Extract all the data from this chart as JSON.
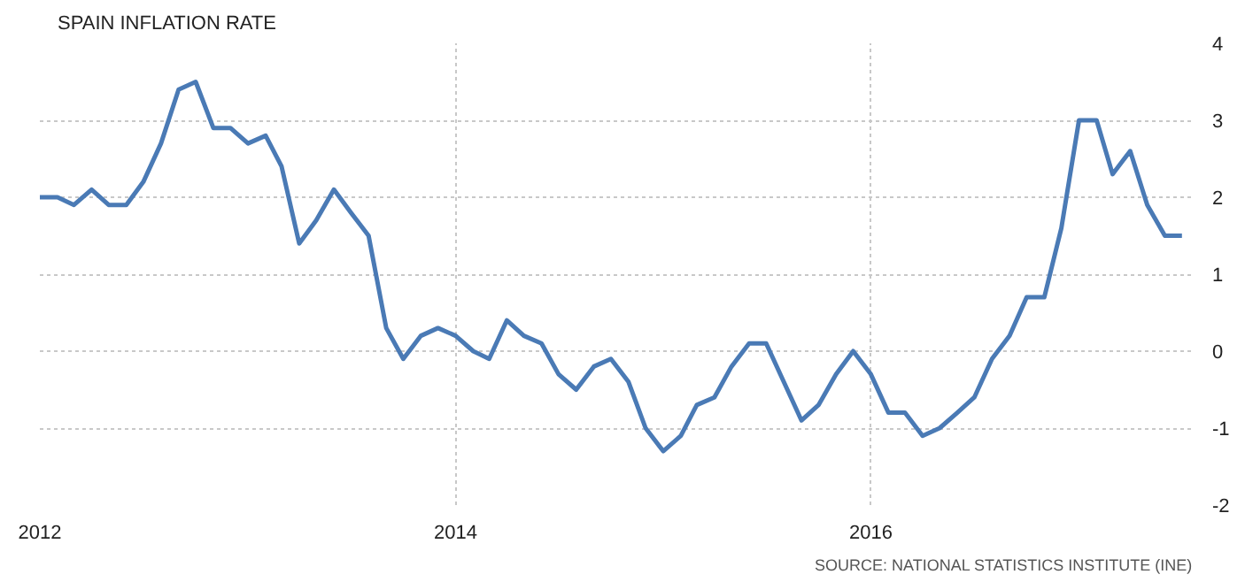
{
  "chart_data": {
    "type": "line",
    "title": "SPAIN INFLATION RATE",
    "x": [
      "2012-01",
      "2012-02",
      "2012-03",
      "2012-04",
      "2012-05",
      "2012-06",
      "2012-07",
      "2012-08",
      "2012-09",
      "2012-10",
      "2012-11",
      "2012-12",
      "2013-01",
      "2013-02",
      "2013-03",
      "2013-04",
      "2013-05",
      "2013-06",
      "2013-07",
      "2013-08",
      "2013-09",
      "2013-10",
      "2013-11",
      "2013-12",
      "2014-01",
      "2014-02",
      "2014-03",
      "2014-04",
      "2014-05",
      "2014-06",
      "2014-07",
      "2014-08",
      "2014-09",
      "2014-10",
      "2014-11",
      "2014-12",
      "2015-01",
      "2015-02",
      "2015-03",
      "2015-04",
      "2015-05",
      "2015-06",
      "2015-07",
      "2015-08",
      "2015-09",
      "2015-10",
      "2015-11",
      "2015-12",
      "2016-01",
      "2016-02",
      "2016-03",
      "2016-04",
      "2016-05",
      "2016-06",
      "2016-07",
      "2016-08",
      "2016-09",
      "2016-10",
      "2016-11",
      "2016-12",
      "2017-01",
      "2017-02",
      "2017-03",
      "2017-04",
      "2017-05",
      "2017-06",
      "2017-07"
    ],
    "series": [
      {
        "color": "#4a7ab5",
        "values": [
          2.0,
          2.0,
          1.9,
          2.1,
          1.9,
          1.9,
          2.2,
          2.7,
          3.4,
          3.5,
          2.9,
          2.9,
          2.7,
          2.8,
          2.4,
          1.4,
          1.7,
          2.1,
          1.8,
          1.5,
          0.3,
          -0.1,
          0.2,
          0.3,
          0.2,
          0.0,
          -0.1,
          0.4,
          0.2,
          0.1,
          -0.3,
          -0.5,
          -0.2,
          -0.1,
          -0.4,
          -1.0,
          -1.3,
          -1.1,
          -0.7,
          -0.6,
          -0.2,
          0.1,
          0.1,
          -0.4,
          -0.9,
          -0.7,
          -0.3,
          0.0,
          -0.3,
          -0.8,
          -0.8,
          -1.1,
          -1.0,
          -0.8,
          -0.6,
          -0.1,
          0.2,
          0.7,
          0.7,
          1.6,
          3.0,
          3.0,
          2.3,
          2.6,
          1.9,
          1.5,
          1.5
        ]
      }
    ],
    "xlim": [
      "2012-01",
      "2017-07-20"
    ],
    "xticks": [
      "2012",
      "2014",
      "2016"
    ],
    "ylim": [
      -2,
      4
    ],
    "yticks": [
      -2,
      -1,
      0,
      1,
      2,
      3,
      4
    ],
    "grid": true,
    "marker": "none",
    "line_style": "solid",
    "annotations": [
      "SOURCE: NATIONAL STATISTICS INSTITUTE (INE)"
    ]
  }
}
